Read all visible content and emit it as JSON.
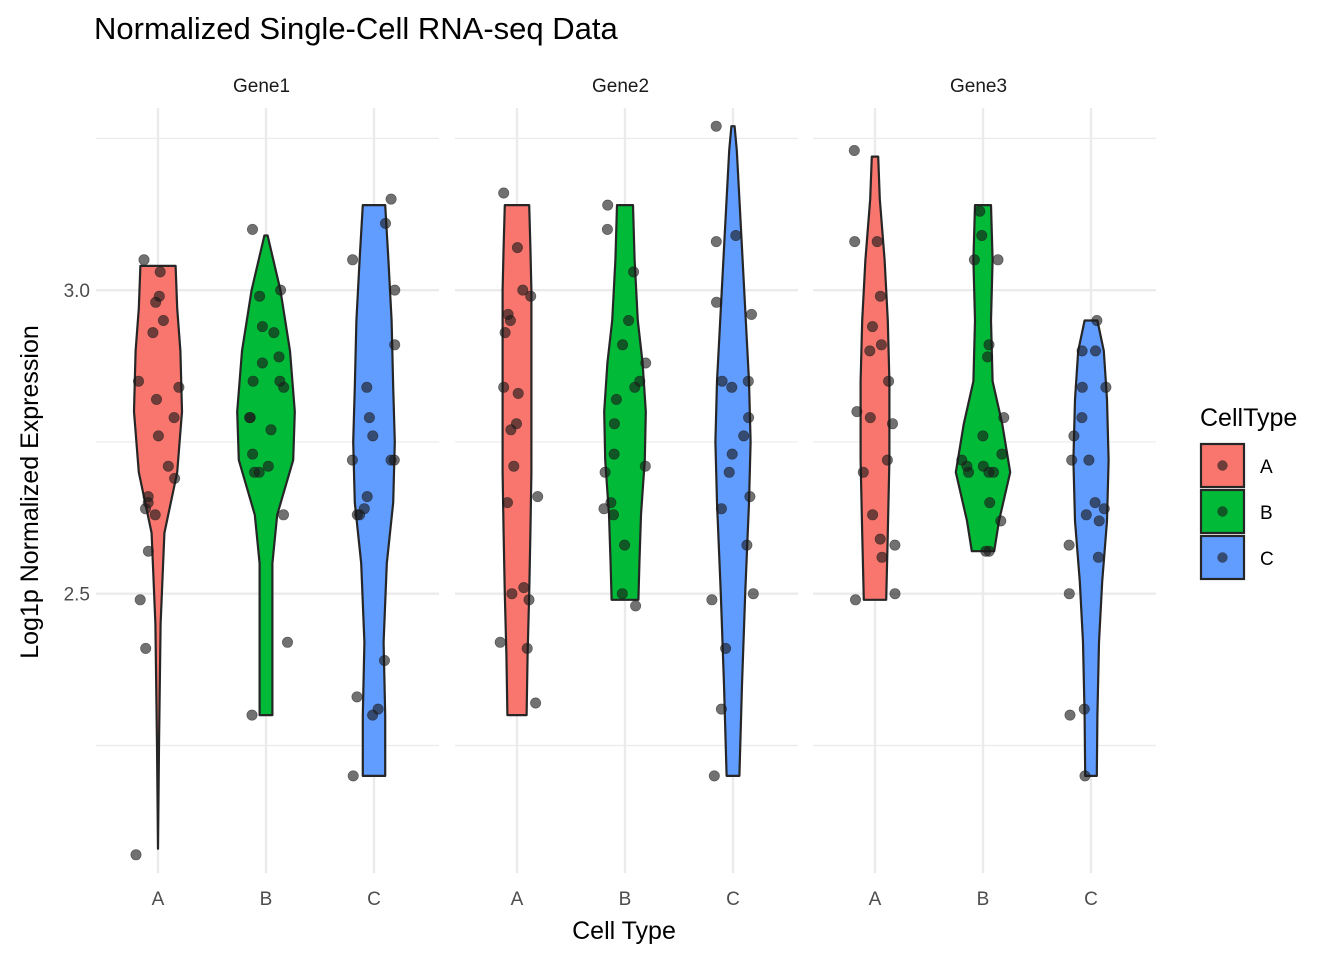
{
  "chart_data": {
    "type": "violin",
    "title": "Normalized Single-Cell RNA-seq Data",
    "xlabel": "Cell Type",
    "ylabel": "Log1p Normalized Expression",
    "ylim": [
      2.04,
      3.3
    ],
    "y_ticks": [
      2.5,
      3.0
    ],
    "y_tick_labels": [
      "2.5",
      "3.0"
    ],
    "grid": true,
    "categories": [
      "A",
      "B",
      "C"
    ],
    "legend": {
      "title": "CellType",
      "position": "right",
      "entries": [
        {
          "label": "A",
          "color": "#F8766D"
        },
        {
          "label": "B",
          "color": "#00BA38"
        },
        {
          "label": "C",
          "color": "#619CFF"
        }
      ]
    },
    "colors": {
      "A": "#F8766D",
      "B": "#00BA38",
      "C": "#619CFF",
      "outline": "#262626",
      "point": "#1a1a1a",
      "grid": "#EBEBEB"
    },
    "facets": [
      {
        "name": "Gene1",
        "groups": [
          {
            "category": "A",
            "profile": [
              [
                2.08,
                0.0
              ],
              [
                2.25,
                0.03
              ],
              [
                2.45,
                0.08
              ],
              [
                2.6,
                0.2
              ],
              [
                2.7,
                0.6
              ],
              [
                2.8,
                0.75
              ],
              [
                2.9,
                0.7
              ],
              [
                2.97,
                0.6
              ],
              [
                3.04,
                0.55
              ]
            ],
            "points": [
              2.07,
              2.41,
              2.49,
              2.57,
              2.63,
              2.64,
              2.65,
              2.66,
              2.69,
              2.71,
              2.76,
              2.79,
              2.82,
              2.84,
              2.85,
              2.93,
              2.95,
              2.98,
              2.99,
              3.03,
              3.05
            ]
          },
          {
            "category": "B",
            "profile": [
              [
                2.3,
                0.2
              ],
              [
                2.42,
                0.2
              ],
              [
                2.55,
                0.2
              ],
              [
                2.63,
                0.35
              ],
              [
                2.72,
                0.85
              ],
              [
                2.8,
                0.9
              ],
              [
                2.9,
                0.75
              ],
              [
                3.0,
                0.45
              ],
              [
                3.09,
                0.05
              ]
            ],
            "points": [
              2.3,
              2.42,
              2.63,
              2.7,
              2.7,
              2.71,
              2.73,
              2.77,
              2.79,
              2.79,
              2.84,
              2.85,
              2.85,
              2.88,
              2.89,
              2.93,
              2.94,
              2.99,
              3.0,
              3.1
            ]
          },
          {
            "category": "C",
            "profile": [
              [
                2.2,
                0.35
              ],
              [
                2.3,
                0.35
              ],
              [
                2.42,
                0.3
              ],
              [
                2.55,
                0.4
              ],
              [
                2.65,
                0.6
              ],
              [
                2.75,
                0.65
              ],
              [
                2.84,
                0.6
              ],
              [
                2.95,
                0.55
              ],
              [
                3.05,
                0.45
              ],
              [
                3.14,
                0.35
              ]
            ],
            "points": [
              2.2,
              2.3,
              2.31,
              2.33,
              2.39,
              2.63,
              2.63,
              2.64,
              2.66,
              2.72,
              2.72,
              2.72,
              2.76,
              2.79,
              2.84,
              2.91,
              3.0,
              3.05,
              3.11,
              3.15
            ]
          }
        ]
      },
      {
        "name": "Gene2",
        "groups": [
          {
            "category": "A",
            "profile": [
              [
                2.3,
                0.3
              ],
              [
                2.4,
                0.33
              ],
              [
                2.5,
                0.38
              ],
              [
                2.6,
                0.42
              ],
              [
                2.7,
                0.45
              ],
              [
                2.8,
                0.45
              ],
              [
                2.9,
                0.45
              ],
              [
                3.0,
                0.45
              ],
              [
                3.07,
                0.42
              ],
              [
                3.14,
                0.38
              ]
            ],
            "points": [
              2.32,
              2.41,
              2.42,
              2.49,
              2.5,
              2.51,
              2.65,
              2.66,
              2.71,
              2.77,
              2.78,
              2.83,
              2.84,
              2.93,
              2.95,
              2.96,
              2.99,
              3.0,
              3.07,
              3.16
            ]
          },
          {
            "category": "B",
            "profile": [
              [
                2.49,
                0.42
              ],
              [
                2.55,
                0.45
              ],
              [
                2.63,
                0.5
              ],
              [
                2.72,
                0.62
              ],
              [
                2.8,
                0.65
              ],
              [
                2.88,
                0.55
              ],
              [
                2.95,
                0.4
              ],
              [
                3.05,
                0.3
              ],
              [
                3.14,
                0.25
              ]
            ],
            "points": [
              2.48,
              2.5,
              2.58,
              2.63,
              2.64,
              2.65,
              2.7,
              2.71,
              2.73,
              2.78,
              2.82,
              2.84,
              2.85,
              2.88,
              2.91,
              2.95,
              3.03,
              3.1,
              3.14
            ]
          },
          {
            "category": "C",
            "profile": [
              [
                2.2,
                0.2
              ],
              [
                2.35,
                0.28
              ],
              [
                2.5,
                0.38
              ],
              [
                2.65,
                0.5
              ],
              [
                2.75,
                0.55
              ],
              [
                2.85,
                0.5
              ],
              [
                2.95,
                0.4
              ],
              [
                3.05,
                0.3
              ],
              [
                3.15,
                0.2
              ],
              [
                3.23,
                0.12
              ],
              [
                3.27,
                0.05
              ]
            ],
            "points": [
              2.2,
              2.31,
              2.41,
              2.49,
              2.5,
              2.58,
              2.64,
              2.66,
              2.7,
              2.73,
              2.76,
              2.79,
              2.84,
              2.85,
              2.85,
              2.96,
              2.98,
              3.08,
              3.09,
              3.27
            ]
          }
        ]
      },
      {
        "name": "Gene3",
        "groups": [
          {
            "category": "A",
            "profile": [
              [
                2.49,
                0.35
              ],
              [
                2.6,
                0.4
              ],
              [
                2.72,
                0.45
              ],
              [
                2.85,
                0.45
              ],
              [
                2.95,
                0.4
              ],
              [
                3.05,
                0.3
              ],
              [
                3.15,
                0.15
              ],
              [
                3.22,
                0.1
              ]
            ],
            "points": [
              2.49,
              2.5,
              2.56,
              2.58,
              2.59,
              2.63,
              2.7,
              2.72,
              2.78,
              2.79,
              2.8,
              2.85,
              2.9,
              2.91,
              2.94,
              2.99,
              3.08,
              3.08,
              3.23
            ]
          },
          {
            "category": "B",
            "profile": [
              [
                2.57,
                0.35
              ],
              [
                2.62,
                0.5
              ],
              [
                2.7,
                0.85
              ],
              [
                2.78,
                0.6
              ],
              [
                2.85,
                0.3
              ],
              [
                2.95,
                0.25
              ],
              [
                3.05,
                0.3
              ],
              [
                3.14,
                0.25
              ]
            ],
            "points": [
              2.57,
              2.57,
              2.62,
              2.65,
              2.7,
              2.7,
              2.7,
              2.71,
              2.71,
              2.72,
              2.73,
              2.76,
              2.79,
              2.89,
              2.91,
              3.05,
              3.05,
              3.09,
              3.13
            ]
          },
          {
            "category": "C",
            "profile": [
              [
                2.2,
                0.18
              ],
              [
                2.3,
                0.2
              ],
              [
                2.42,
                0.25
              ],
              [
                2.52,
                0.35
              ],
              [
                2.62,
                0.5
              ],
              [
                2.72,
                0.55
              ],
              [
                2.82,
                0.5
              ],
              [
                2.9,
                0.4
              ],
              [
                2.95,
                0.2
              ]
            ],
            "points": [
              2.2,
              2.3,
              2.31,
              2.5,
              2.56,
              2.58,
              2.62,
              2.63,
              2.64,
              2.65,
              2.72,
              2.72,
              2.76,
              2.79,
              2.84,
              2.84,
              2.9,
              2.9,
              2.95
            ]
          }
        ]
      }
    ]
  }
}
